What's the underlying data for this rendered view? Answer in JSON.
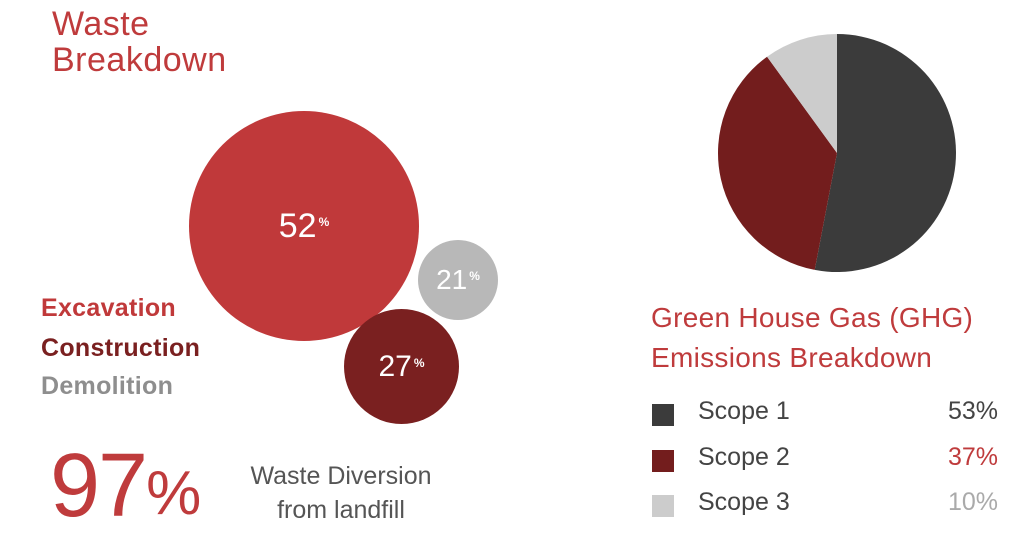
{
  "colors": {
    "accent": "#bf3b3c",
    "excavation": "#c0393a",
    "construction": "#7a2020",
    "demolition": "#b8b8b8",
    "scope1": "#3b3b3b",
    "scope2": "#731d1d",
    "scope3": "#cccccc"
  },
  "waste": {
    "title_line1": "Waste",
    "title_line2": "Breakdown",
    "bubbles": [
      {
        "name": "Excavation",
        "value": "52",
        "unit": "%"
      },
      {
        "name": "Demolition",
        "value": "21",
        "unit": "%"
      },
      {
        "name": "Construction",
        "value": "27",
        "unit": "%"
      }
    ],
    "legend": [
      "Excavation",
      "Construction",
      "Demolition"
    ],
    "diversion_value": "97",
    "diversion_unit": "%",
    "diversion_line1": "Waste Diversion",
    "diversion_line2": "from landfill"
  },
  "ghg": {
    "title_line1": "Green House Gas (GHG)",
    "title_line2": "Emissions Breakdown",
    "rows": [
      {
        "label": "Scope 1",
        "value": "53%"
      },
      {
        "label": "Scope 2",
        "value": "37%"
      },
      {
        "label": "Scope 3",
        "value": "10%"
      }
    ]
  },
  "chart_data": [
    {
      "type": "bubble",
      "title": "Waste Breakdown",
      "categories": [
        "Excavation",
        "Construction",
        "Demolition"
      ],
      "values": [
        52,
        27,
        21
      ],
      "unit": "%"
    },
    {
      "type": "pie",
      "title": "Green House Gas (GHG) Emissions Breakdown",
      "categories": [
        "Scope 1",
        "Scope 2",
        "Scope 3"
      ],
      "values": [
        53,
        37,
        10
      ],
      "unit": "%",
      "legend": "bottom"
    }
  ]
}
